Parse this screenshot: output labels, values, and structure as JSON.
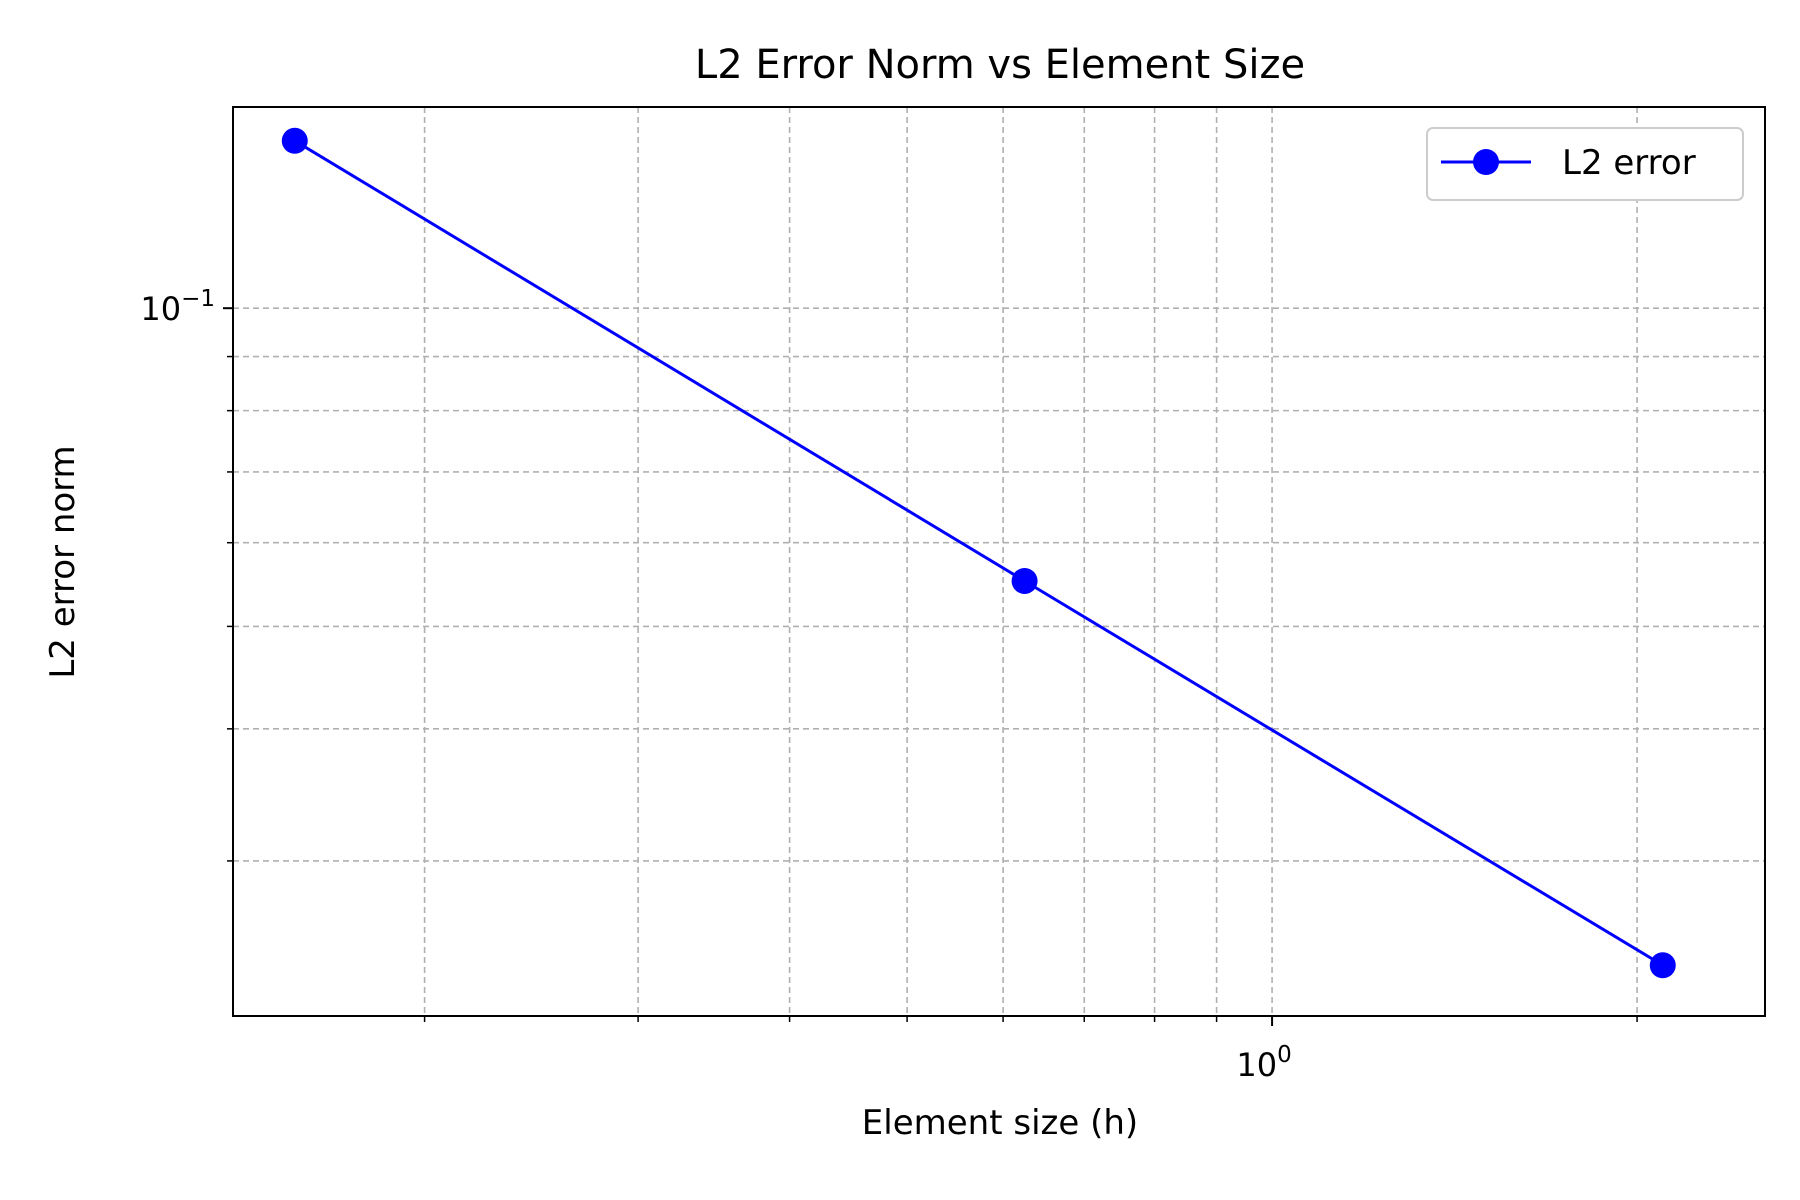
{
  "chart_data": {
    "type": "line",
    "title": "L2 Error Norm vs Element Size",
    "xlabel": "Element size (h)",
    "ylabel": "L2 error norm",
    "xscale": "log",
    "yscale": "log",
    "xlim": [
      0.139,
      2.55
    ],
    "ylim": [
      0.0214,
      0.155
    ],
    "grid": true,
    "legend_position": "top-right",
    "x_tick_labels": [
      {
        "value": 1,
        "base": "10",
        "exp": "0"
      }
    ],
    "y_tick_labels": [
      {
        "value": 0.1,
        "base": "10",
        "exp": "−1"
      }
    ],
    "series": [
      {
        "name": "L2 error",
        "color": "#0000ff",
        "marker": "circle",
        "x": [
          0.1563,
          0.625,
          2.1
        ],
        "y": [
          0.144,
          0.0552,
          0.0239
        ]
      }
    ]
  }
}
